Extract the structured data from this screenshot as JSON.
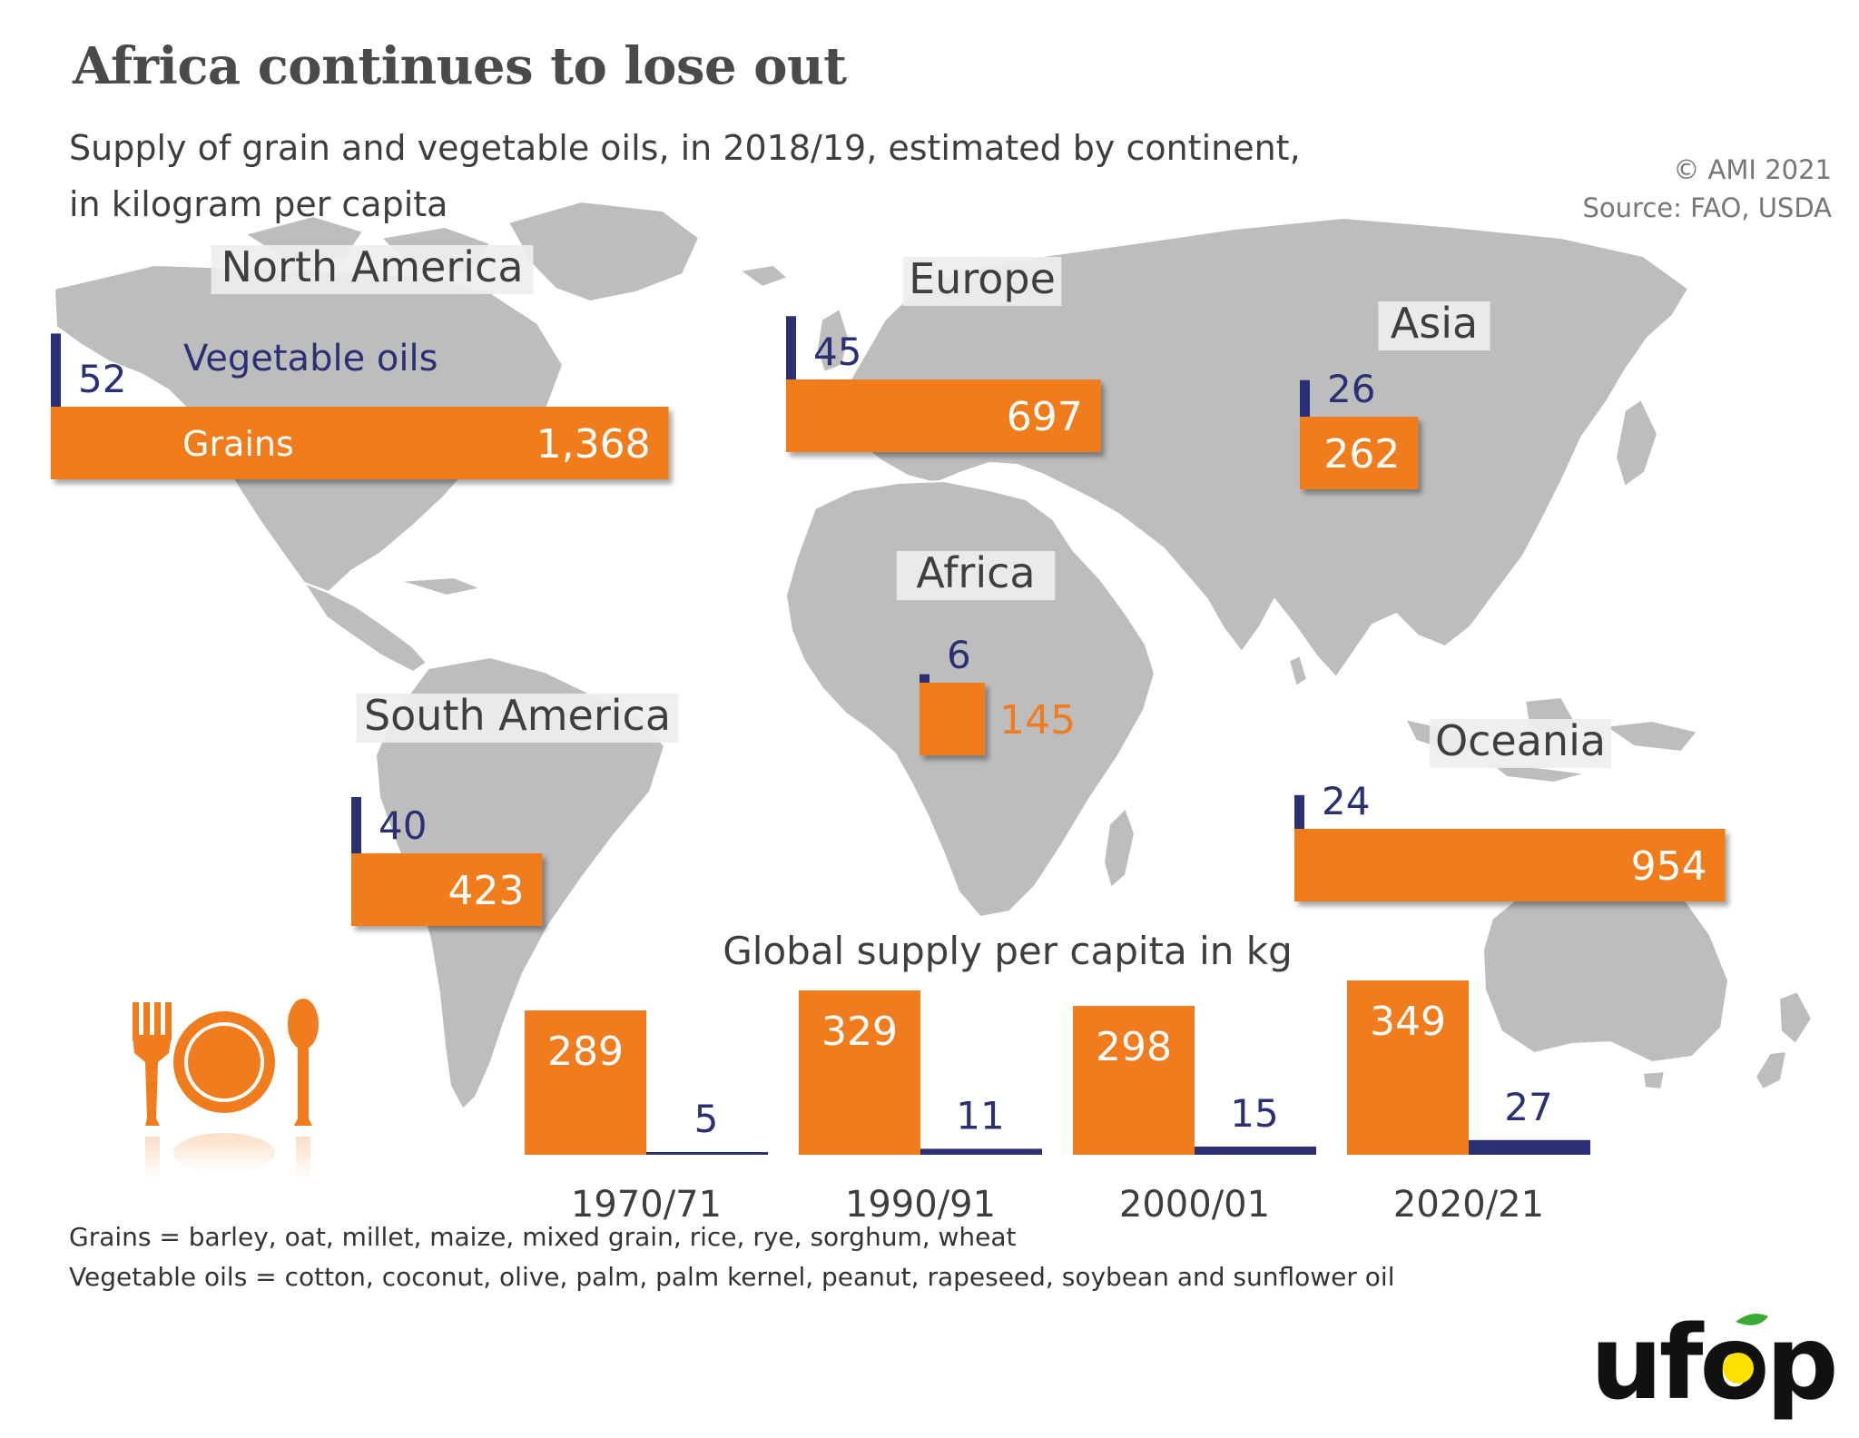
{
  "title": "Africa continues to lose out",
  "subtitle_line1": "Supply of grain and vegetable oils, in 2018/19, estimated by continent,",
  "subtitle_line2": "in kilogram per capita",
  "copyright": "© AMI 2021",
  "source": "Source: FAO, USDA",
  "footnote_grains": "Grains = barley, oat, millet, maize, mixed grain, rice, rye, sorghum, wheat",
  "footnote_oils": "Vegetable oils = cotton, coconut, olive, palm, palm kernel, peanut, rapeseed, soybean and sunflower oil",
  "logo_text": "ufop",
  "colors": {
    "grains": "#f07c1e",
    "oils": "#2b2f73",
    "map": "#bdbdbd"
  },
  "icons": [
    "fork-icon",
    "plate-icon",
    "spoon-icon"
  ],
  "chart_data": [
    {
      "type": "bar",
      "categories": [
        "North America",
        "Europe",
        "Asia",
        "Africa",
        "South America",
        "Oceania"
      ],
      "series": [
        {
          "name": "Grains",
          "values": [
            1368,
            697,
            262,
            145,
            423,
            954
          ]
        },
        {
          "name": "Vegetable oils",
          "values": [
            52,
            45,
            26,
            6,
            40,
            24
          ]
        }
      ],
      "value_labels": {
        "grains": [
          "1,368",
          "697",
          "262",
          "145",
          "423",
          "954"
        ],
        "oils": [
          "52",
          "45",
          "26",
          "6",
          "40",
          "24"
        ]
      },
      "legend": {
        "grains": "Grains",
        "oils": "Vegetable oils"
      }
    },
    {
      "type": "bar",
      "title": "Global supply per capita in kg",
      "categories": [
        "1970/71",
        "1990/91",
        "2000/01",
        "2020/21"
      ],
      "series": [
        {
          "values": [
            289,
            329,
            298,
            349
          ]
        },
        {
          "values": [
            5,
            11,
            15,
            27
          ]
        }
      ]
    }
  ]
}
